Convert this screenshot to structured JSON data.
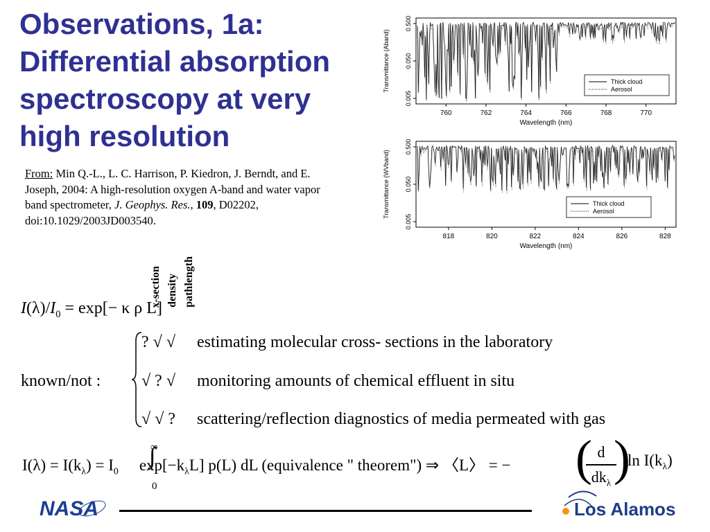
{
  "title": {
    "lines": [
      "Observations, 1a:",
      "Differential absorption",
      "spectroscopy at very",
      "high resolution"
    ]
  },
  "citation": {
    "prefix": "From:",
    "authors": " Min Q.-L., L. C. Harrison, P. Kiedron, J. Berndt, and E. Joseph, 2004: A high-resolution oxygen A-band and water vapor band spectrometer, ",
    "journal": "J. Geophys. Res.",
    "comma": ", ",
    "volume": "109",
    "rest": ", D02202, doi:10.1029/2003JD003540."
  },
  "vertical_labels": [
    "x-section",
    "density",
    "pathlength"
  ],
  "equation1": {
    "lhs_I": "I",
    "lambda": "(λ)",
    "slash": "/",
    "I0": "I",
    "sub0": "0",
    "rhs": " = exp[− κ ρ L]"
  },
  "known_label": "known/not :",
  "rows": [
    {
      "marks": "?  √  √",
      "text": "estimating molecular cross- sections in the laboratory"
    },
    {
      "marks": "√  ?  √",
      "text": "monitoring amounts of chemical effluent in situ"
    },
    {
      "marks": "√  √  ?",
      "text": "scattering/reflection diagnostics of media permeated with gas"
    }
  ],
  "equation2": {
    "left": "I(λ) = I(k",
    "sub_lambda": "λ",
    "mid": ") = I",
    "sub0": "0",
    "upper": "∞",
    "lower": "0",
    "integral": "∫",
    "body": "exp[−k",
    "body2": "L] p(L) dL (equivalence \" theorem\") ⇒ 〈L〉 = −",
    "frac_top": "d",
    "frac_bottom": "dk",
    "tail": "ln I(k",
    "tail_end": ")"
  },
  "logos": {
    "nasa": "NASA",
    "lanl": "Los Alamos"
  },
  "colors": {
    "title": "#2e3192",
    "nasa_blue": "#1b3f94",
    "lanl_blue": "#1f3c88",
    "lanl_orange": "#f7941d"
  },
  "chart_data": [
    {
      "type": "line",
      "title": "",
      "xlabel": "Wavelength (nm)",
      "ylabel": "Transmittance (Aband)",
      "xlim": [
        758.5,
        771.5
      ],
      "x_ticks": [
        "760",
        "762",
        "764",
        "766",
        "768",
        "770"
      ],
      "y_ticks": [
        "0.005",
        "0.050",
        "0.500"
      ],
      "y_scale": "log",
      "series": [
        {
          "name": "Thick cloud",
          "style": "solid"
        },
        {
          "name": "Aerosol",
          "style": "dotted"
        }
      ],
      "legend": "lower-right"
    },
    {
      "type": "line",
      "title": "",
      "xlabel": "Wavelength (nm)",
      "ylabel": "Transmittance (WVband)",
      "xlim": [
        816.5,
        828.5
      ],
      "x_ticks": [
        "818",
        "820",
        "822",
        "824",
        "826",
        "828"
      ],
      "y_ticks": [
        "0.005",
        "0.050",
        "0.500"
      ],
      "y_scale": "log",
      "series": [
        {
          "name": "Thick cloud",
          "style": "solid"
        },
        {
          "name": "Aerosol",
          "style": "dotted"
        }
      ],
      "legend": "lower-right"
    }
  ]
}
